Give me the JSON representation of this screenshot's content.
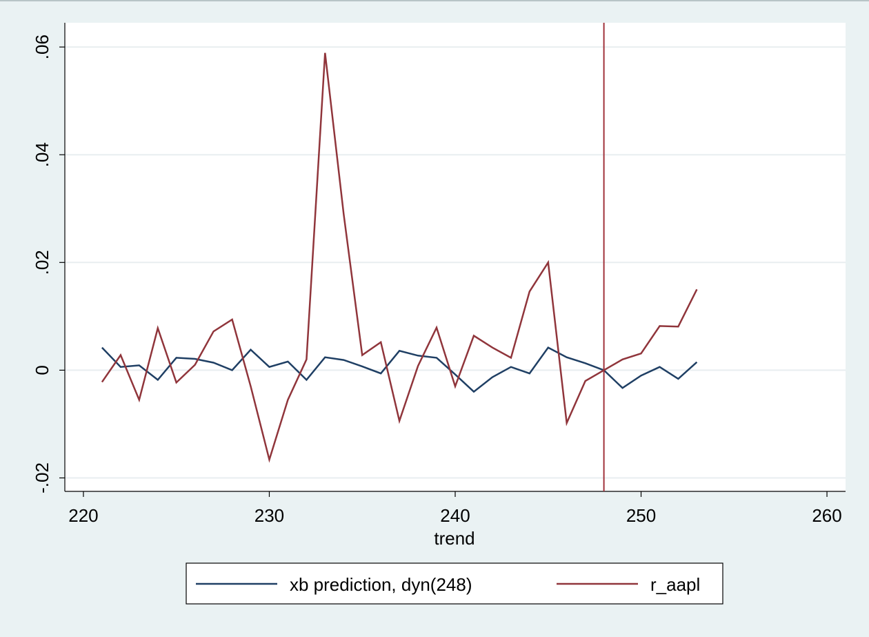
{
  "chart_data": {
    "type": "line",
    "xlabel": "trend",
    "ylabel": "",
    "xlim": [
      219,
      261
    ],
    "ylim": [
      -0.0225,
      0.0645
    ],
    "x_ticks": [
      {
        "value": 220,
        "label": "220"
      },
      {
        "value": 230,
        "label": "230"
      },
      {
        "value": 240,
        "label": "240"
      },
      {
        "value": 250,
        "label": "250"
      },
      {
        "value": 260,
        "label": "260"
      }
    ],
    "y_ticks": [
      {
        "value": -0.02,
        "label": "-.02"
      },
      {
        "value": 0,
        "label": "0"
      },
      {
        "value": 0.02,
        "label": ".02"
      },
      {
        "value": 0.04,
        "label": ".04"
      },
      {
        "value": 0.06,
        "label": ".06"
      }
    ],
    "grid": true,
    "legend_position": "bottom",
    "vline": {
      "x": 248,
      "color": "#a0313a"
    },
    "plot_background": "#ffffff",
    "outer_background": "#eaf2f3",
    "x": [
      221,
      222,
      223,
      224,
      225,
      226,
      227,
      228,
      229,
      230,
      231,
      232,
      233,
      234,
      235,
      236,
      237,
      238,
      239,
      240,
      241,
      242,
      243,
      244,
      245,
      246,
      247,
      248,
      249,
      250,
      251,
      252,
      253
    ],
    "series": [
      {
        "name": "xb prediction, dyn(248)",
        "color": "#1f3f64",
        "values": [
          0.0042,
          0.0006,
          0.0009,
          -0.0018,
          0.0023,
          0.0021,
          0.0014,
          0.0,
          0.0038,
          0.0006,
          0.0016,
          -0.0018,
          0.0024,
          0.0019,
          0.0007,
          -0.0006,
          0.0036,
          0.0027,
          0.0023,
          -0.0008,
          -0.004,
          -0.0013,
          0.0006,
          -0.0006,
          0.0042,
          0.0024,
          0.0013,
          0.0,
          -0.0033,
          -0.001,
          0.0006,
          -0.0016,
          0.0015
        ]
      },
      {
        "name": "r_aapl",
        "color": "#90353b",
        "values": [
          -0.0022,
          0.0028,
          -0.0055,
          0.0078,
          -0.0023,
          0.001,
          0.0072,
          0.0094,
          -0.003,
          -0.0166,
          -0.0055,
          0.002,
          0.0589,
          0.029,
          0.0028,
          0.0052,
          -0.0094,
          0.0008,
          0.0079,
          -0.003,
          0.0064,
          0.0042,
          0.0023,
          0.0146,
          0.02,
          -0.0098,
          -0.002,
          0.0,
          0.002,
          0.0031,
          0.0082,
          0.0081,
          0.015
        ]
      }
    ]
  }
}
